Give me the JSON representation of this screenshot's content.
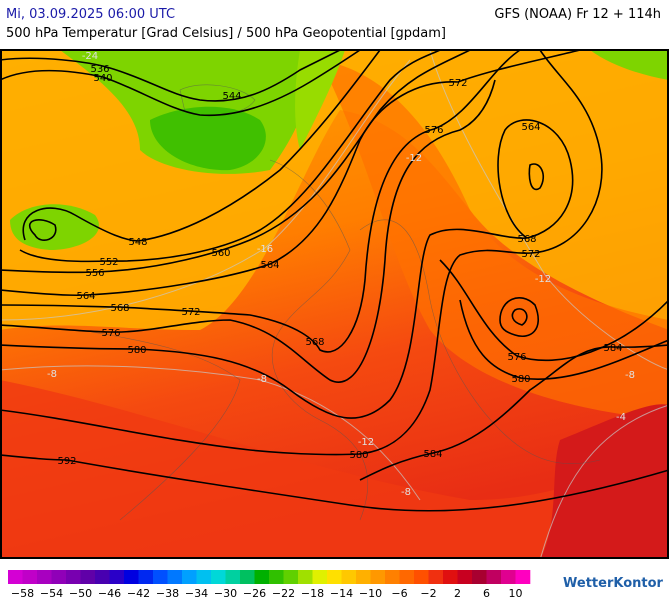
{
  "header": {
    "datetime": "Mi, 03.09.2025 06:00 UTC",
    "model": "GFS (NOAA) Fr 12 + 114h",
    "subtitle": "500 hPa Temperatur [Grad Celsius] / 500 hPa Geopotential [gpdam]"
  },
  "map": {
    "contour_labels": [
      "536",
      "540",
      "544",
      "548",
      "552",
      "556",
      "560",
      "564",
      "564",
      "568",
      "572",
      "576",
      "580",
      "568",
      "572",
      "576",
      "564",
      "568",
      "572",
      "576",
      "580",
      "584",
      "584",
      "580",
      "592"
    ],
    "temperature_labels": [
      "-24",
      "-16",
      "-12",
      "-12",
      "-12",
      "-8",
      "-8",
      "-8",
      "-8",
      "-4"
    ]
  },
  "legend": {
    "ticks": [
      "−58",
      "−54",
      "−50",
      "−46",
      "−42",
      "−38",
      "−34",
      "−30",
      "−26",
      "−22",
      "−18",
      "−14",
      "−10",
      "−6",
      "−2",
      "2",
      "6",
      "10"
    ]
  },
  "brand": "WetterKontor"
}
